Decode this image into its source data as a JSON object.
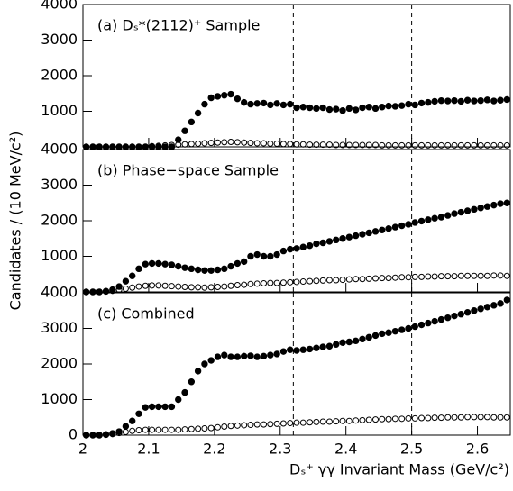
{
  "chart_data": {
    "type": "scatter",
    "ylabel": "Candidates / (10 MeV/c²)",
    "xlabel": "Dₛ⁺ γγ Invariant Mass (GeV/c²)",
    "xlim": [
      2,
      2.65
    ],
    "xticks": [
      2,
      2.1,
      2.2,
      2.3,
      2.4,
      2.5,
      2.6
    ],
    "vlines": [
      2.32,
      2.5
    ],
    "x": [
      2.005,
      2.015,
      2.025,
      2.035,
      2.045,
      2.055,
      2.065,
      2.075,
      2.085,
      2.095,
      2.105,
      2.115,
      2.125,
      2.135,
      2.145,
      2.155,
      2.165,
      2.175,
      2.185,
      2.195,
      2.205,
      2.215,
      2.225,
      2.235,
      2.245,
      2.255,
      2.265,
      2.275,
      2.285,
      2.295,
      2.305,
      2.315,
      2.325,
      2.335,
      2.345,
      2.355,
      2.365,
      2.375,
      2.385,
      2.395,
      2.405,
      2.415,
      2.425,
      2.435,
      2.445,
      2.455,
      2.465,
      2.475,
      2.485,
      2.495,
      2.505,
      2.515,
      2.525,
      2.535,
      2.545,
      2.555,
      2.565,
      2.575,
      2.585,
      2.595,
      2.605,
      2.615,
      2.625,
      2.635,
      2.645
    ],
    "panels": [
      {
        "title": "(a) Dₛ*(2112)⁺ Sample",
        "ylim": [
          0,
          4000
        ],
        "yticks": [
          1000,
          2000,
          3000,
          4000
        ],
        "series": [
          {
            "marker": "filled",
            "color": "#000000",
            "values": [
              0,
              0,
              0,
              0,
              0,
              0,
              0,
              0,
              0,
              0,
              0,
              0,
              0,
              0,
              200,
              450,
              700,
              950,
              1200,
              1380,
              1420,
              1450,
              1480,
              1350,
              1250,
              1200,
              1220,
              1230,
              1180,
              1220,
              1180,
              1200,
              1100,
              1120,
              1100,
              1080,
              1100,
              1050,
              1060,
              1020,
              1080,
              1040,
              1100,
              1120,
              1080,
              1120,
              1150,
              1140,
              1160,
              1200,
              1180,
              1230,
              1250,
              1280,
              1300,
              1290,
              1300,
              1280,
              1310,
              1290,
              1300,
              1320,
              1290,
              1310,
              1330
            ]
          },
          {
            "marker": "open",
            "color": "#000000",
            "values": [
              0,
              0,
              0,
              0,
              0,
              0,
              0,
              0,
              0,
              0,
              20,
              30,
              40,
              50,
              60,
              70,
              80,
              90,
              100,
              110,
              120,
              130,
              140,
              130,
              120,
              110,
              100,
              100,
              90,
              90,
              80,
              80,
              70,
              70,
              60,
              60,
              60,
              60,
              50,
              50,
              50,
              50,
              50,
              50,
              50,
              40,
              40,
              40,
              40,
              40,
              40,
              40,
              40,
              40,
              40,
              40,
              40,
              40,
              40,
              40,
              40,
              40,
              40,
              40,
              40
            ]
          }
        ]
      },
      {
        "title": "(b) Phase−space Sample",
        "ylim": [
          0,
          4000
        ],
        "yticks": [
          1000,
          2000,
          3000,
          4000
        ],
        "series": [
          {
            "marker": "filled",
            "color": "#000000",
            "values": [
              0,
              0,
              0,
              20,
              60,
              150,
              300,
              450,
              650,
              780,
              800,
              800,
              780,
              760,
              720,
              680,
              650,
              620,
              600,
              600,
              620,
              650,
              720,
              800,
              850,
              1000,
              1050,
              1000,
              1000,
              1050,
              1150,
              1200,
              1220,
              1260,
              1300,
              1350,
              1380,
              1420,
              1460,
              1500,
              1540,
              1580,
              1620,
              1660,
              1700,
              1740,
              1780,
              1820,
              1860,
              1900,
              1950,
              1990,
              2030,
              2070,
              2100,
              2150,
              2200,
              2240,
              2280,
              2320,
              2360,
              2400,
              2440,
              2480,
              2500
            ]
          },
          {
            "marker": "open",
            "color": "#000000",
            "values": [
              0,
              0,
              0,
              10,
              30,
              60,
              90,
              120,
              150,
              170,
              180,
              180,
              170,
              160,
              150,
              140,
              130,
              130,
              120,
              130,
              140,
              150,
              170,
              190,
              200,
              220,
              230,
              240,
              250,
              250,
              260,
              270,
              280,
              290,
              300,
              310,
              320,
              330,
              330,
              340,
              350,
              360,
              360,
              370,
              380,
              390,
              390,
              400,
              410,
              410,
              420,
              420,
              430,
              430,
              440,
              440,
              440,
              450,
              450,
              450,
              450,
              450,
              460,
              460,
              450
            ]
          }
        ]
      },
      {
        "title": "(c) Combined",
        "ylim": [
          0,
          4000
        ],
        "yticks": [
          0,
          1000,
          2000,
          3000,
          4000
        ],
        "series": [
          {
            "marker": "filled",
            "color": "#000000",
            "values": [
              0,
              0,
              0,
              20,
              50,
              100,
              250,
              400,
              600,
              780,
              800,
              800,
              800,
              800,
              1000,
              1200,
              1500,
              1800,
              2000,
              2100,
              2200,
              2250,
              2200,
              2200,
              2220,
              2230,
              2200,
              2220,
              2250,
              2280,
              2350,
              2400,
              2380,
              2400,
              2420,
              2450,
              2480,
              2500,
              2550,
              2600,
              2620,
              2650,
              2700,
              2750,
              2800,
              2850,
              2880,
              2920,
              2960,
              3000,
              3050,
              3100,
              3150,
              3200,
              3250,
              3300,
              3350,
              3400,
              3450,
              3500,
              3550,
              3600,
              3650,
              3700,
              3800
            ]
          },
          {
            "marker": "open",
            "color": "#000000",
            "values": [
              0,
              0,
              0,
              10,
              30,
              60,
              90,
              120,
              140,
              150,
              150,
              150,
              150,
              150,
              150,
              160,
              170,
              180,
              190,
              200,
              220,
              240,
              260,
              270,
              280,
              290,
              300,
              300,
              310,
              320,
              330,
              340,
              350,
              350,
              360,
              370,
              380,
              380,
              390,
              400,
              400,
              410,
              420,
              430,
              440,
              450,
              450,
              460,
              460,
              470,
              470,
              480,
              480,
              490,
              490,
              500,
              500,
              500,
              510,
              510,
              510,
              510,
              500,
              500,
              500
            ]
          }
        ]
      }
    ]
  }
}
